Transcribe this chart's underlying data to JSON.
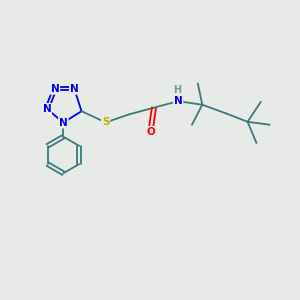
{
  "bg_color": "#e8eae8",
  "atom_colors": {
    "N": "#0000ee",
    "S": "#ccaa00",
    "O": "#ff0000",
    "C": "#3a7a7a",
    "H": "#6a9a9a"
  },
  "bond_color": "#3a7a7a",
  "bond_lw": 1.3,
  "font_size_atom": 7.5
}
